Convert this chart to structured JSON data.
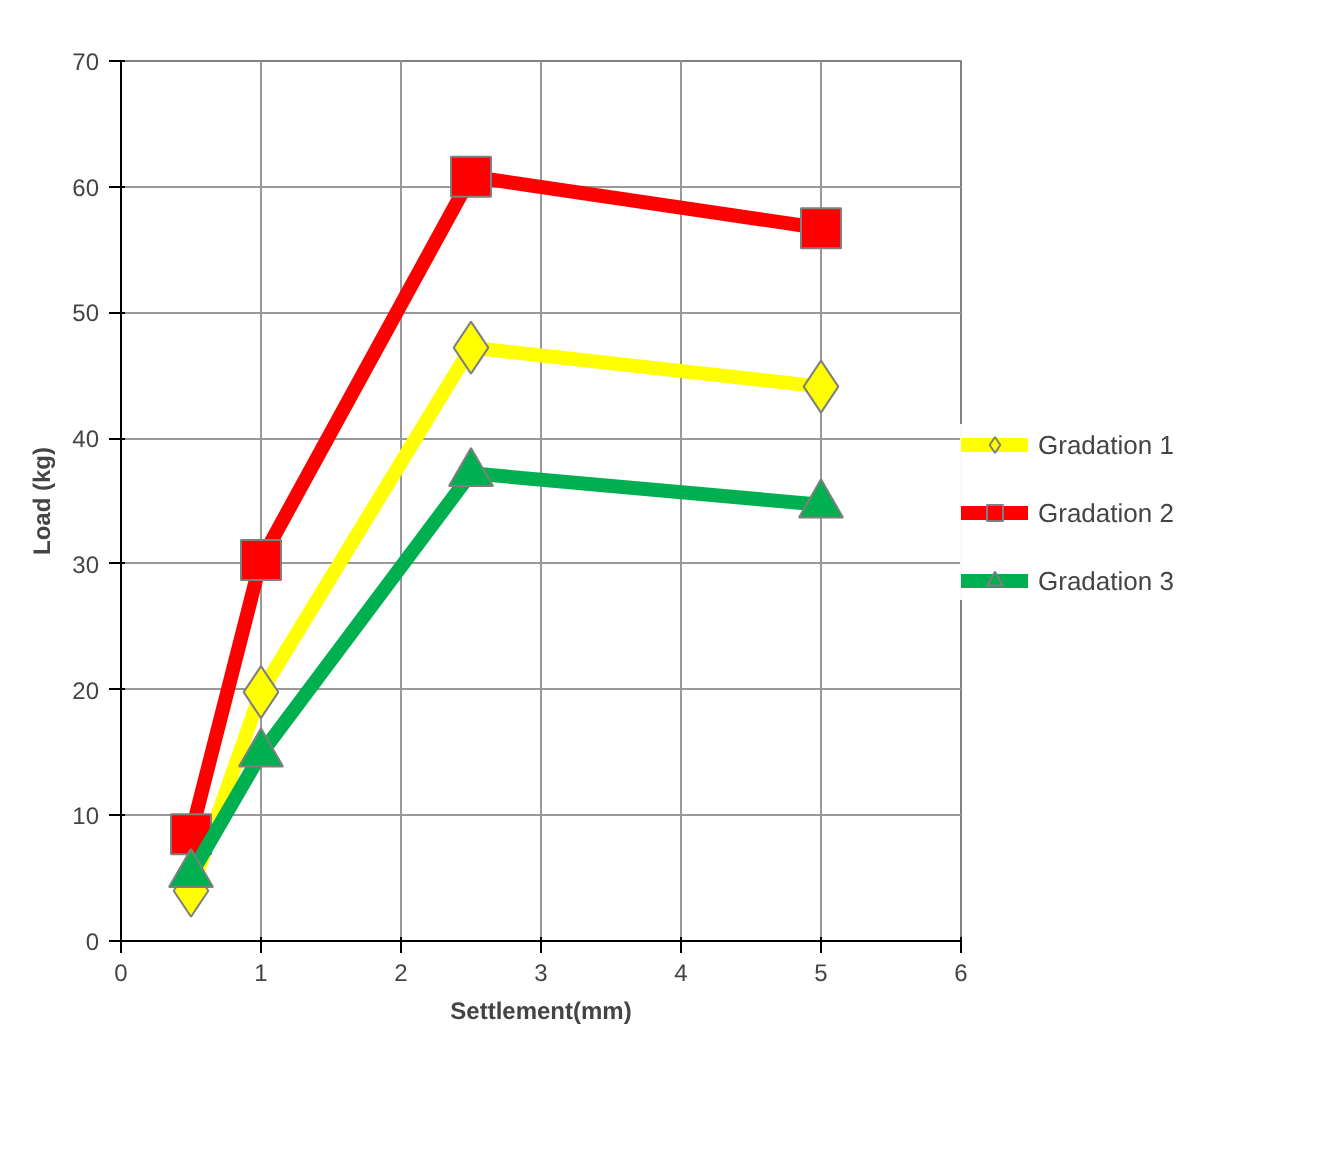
{
  "chart_data": {
    "type": "line",
    "xlabel": "Settlement(mm)",
    "ylabel": "Load (kg)",
    "xlim": [
      0,
      6
    ],
    "ylim": [
      0,
      70
    ],
    "xticks": [
      0,
      1,
      2,
      3,
      4,
      5,
      6
    ],
    "yticks": [
      0,
      10,
      20,
      30,
      40,
      50,
      60,
      70
    ],
    "grid": true,
    "legend": "right",
    "line_style": "solid",
    "series": [
      {
        "name": "Gradation 1",
        "color": "#ffff00",
        "marker": "diamond",
        "x": [
          0.5,
          1,
          2.5,
          5
        ],
        "values": [
          4,
          19.8,
          47.2,
          44.1
        ]
      },
      {
        "name": "Gradation 2",
        "color": "#ff0000",
        "marker": "square",
        "x": [
          0.5,
          1,
          2.5,
          5
        ],
        "values": [
          8.5,
          30.3,
          60.8,
          56.7
        ]
      },
      {
        "name": "Gradation 3",
        "color": "#00b050",
        "marker": "triangle",
        "x": [
          0.5,
          1,
          2.5,
          5
        ],
        "values": [
          5.3,
          14.9,
          37.2,
          34.7
        ]
      }
    ]
  }
}
